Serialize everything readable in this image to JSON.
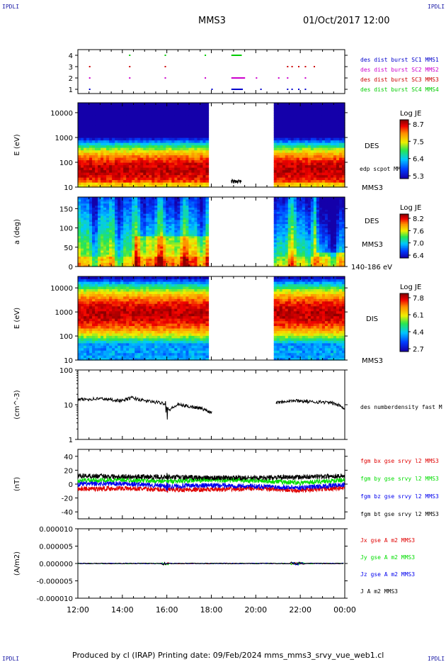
{
  "header": {
    "corner_label": "IPDLI",
    "spacecraft": "MMS3",
    "datetime": "01/Oct/2017 12:00"
  },
  "footer": {
    "text": "Produced by cl (IRAP)   Printing date: 09/Feb/2024   mms_mms3_srvy_vue_web1.cl"
  },
  "colors": {
    "mms1": "#0000cc",
    "mms2": "#cc00cc",
    "mms3": "#cc0000",
    "mms4": "#00cc00",
    "bx": "#e00000",
    "by": "#00dd00",
    "bz": "#0000ee",
    "bt": "#000000"
  },
  "time_axis": {
    "ticks": [
      "12:00",
      "14:00",
      "16:00",
      "18:00",
      "20:00",
      "22:00",
      "00:00"
    ]
  },
  "chart_data": [
    {
      "type": "scatter",
      "panel": "burst",
      "ylim": [
        1,
        4
      ],
      "y_ticks": [
        "1",
        "2",
        "3",
        "4"
      ],
      "legend": [
        "des dist burst SC1 MMS1",
        "des dist burst SC2 MMS2",
        "des dist burst SC3 MMS3",
        "des dist burst SC4 MMS4"
      ],
      "series": [
        {
          "name": "des dist burst SC1 MMS1",
          "level": 1,
          "color": "mms1",
          "x": [
            12.5,
            18.0,
            18.9,
            19.1,
            20.2,
            21.4,
            21.6,
            21.9,
            22.2
          ]
        },
        {
          "name": "des dist burst SC2 MMS2",
          "level": 2,
          "color": "mms2",
          "x": [
            12.5,
            14.3,
            15.9,
            17.7,
            18.9,
            19.1,
            19.2,
            20.0,
            21.0,
            21.4,
            22.2
          ]
        },
        {
          "name": "des dist burst SC3 MMS3",
          "level": 3,
          "color": "mms3",
          "x": [
            12.5,
            14.3,
            15.9,
            21.4,
            21.6,
            21.9,
            22.2,
            22.6
          ]
        },
        {
          "name": "des dist burst SC4 MMS4",
          "level": 4,
          "color": "mms4",
          "x": [
            14.3,
            15.9,
            17.7,
            18.9,
            19.05
          ]
        }
      ]
    },
    {
      "type": "heatmap",
      "panel": "des_energy",
      "ylabel": "E (eV)",
      "yscale": "log",
      "ylim": [
        10,
        25000
      ],
      "y_ticks": [
        "10",
        "100",
        "1000",
        "10000"
      ],
      "label_instrument": "DES",
      "label_overlay": "edp scpot MMS3",
      "label_spacecraft": "MMS3",
      "colorbar": {
        "label": "Log JE",
        "ticks": [
          "8.7",
          "7.5",
          "6.4",
          "5.3"
        ]
      },
      "gap": [
        18.0,
        20.7
      ],
      "peak_energy_eV": 50
    },
    {
      "type": "heatmap",
      "panel": "des_pitch",
      "ylabel": "a (deg)",
      "ylim": [
        0,
        180
      ],
      "y_ticks": [
        "0",
        "50",
        "100",
        "150"
      ],
      "label_instrument": "DES",
      "label_spacecraft": "MMS3",
      "label_energy": "140-186 eV",
      "colorbar": {
        "label": "Log JE",
        "ticks": [
          "8.2",
          "7.6",
          "7.0",
          "6.4"
        ]
      },
      "gap": [
        18.0,
        20.7
      ]
    },
    {
      "type": "heatmap",
      "panel": "dis_energy",
      "ylabel": "E (eV)",
      "yscale": "log",
      "ylim": [
        10,
        30000
      ],
      "y_ticks": [
        "10",
        "100",
        "1000",
        "10000"
      ],
      "label_instrument": "DIS",
      "label_spacecraft": "MMS3",
      "colorbar": {
        "label": "Log JE",
        "ticks": [
          "7.8",
          "6.1",
          "4.4",
          "2.7"
        ]
      },
      "gap": [
        18.0,
        20.7
      ],
      "peak_energy_eV": 900
    },
    {
      "type": "line",
      "panel": "density",
      "ylabel": "(cm^-3)",
      "yscale": "log",
      "ylim": [
        1,
        100
      ],
      "y_ticks": [
        "1",
        "10",
        "100"
      ],
      "legend": [
        "des numberdensity fast M"
      ],
      "series": [
        {
          "name": "des numberdensity fast M",
          "color": "bt",
          "x": [
            12.0,
            13.0,
            14.0,
            14.4,
            15.0,
            15.9,
            16.1,
            16.5,
            17.0,
            17.5,
            18.0,
            20.9,
            21.5,
            22.0,
            22.5,
            23.0,
            23.5,
            24.0
          ],
          "y": [
            14,
            15,
            13,
            16,
            13,
            11,
            7,
            10,
            9,
            8,
            6,
            12,
            13,
            13,
            12,
            12,
            11,
            8
          ]
        }
      ]
    },
    {
      "type": "line",
      "panel": "fgm",
      "ylabel": "(nT)",
      "ylim": [
        -50,
        50
      ],
      "y_ticks": [
        "-40",
        "-20",
        "0",
        "20",
        "40"
      ],
      "legend": [
        "fgm bx gse srvy l2 MMS3",
        "fgm by gse srvy l2 MMS3",
        "fgm bz gse srvy l2 MMS3",
        "fgm bt gse srvy l2 MMS3"
      ],
      "series": [
        {
          "name": "fgm bx gse srvy l2 MMS3",
          "color": "bx",
          "x": [
            12,
            14,
            16,
            18,
            20,
            22,
            24
          ],
          "y": [
            -7,
            -6,
            -8,
            -8,
            -6,
            -9,
            -5
          ]
        },
        {
          "name": "fgm by gse srvy l2 MMS3",
          "color": "by",
          "x": [
            12,
            14,
            16,
            18,
            20,
            22,
            24
          ],
          "y": [
            5,
            6,
            4,
            6,
            5,
            2,
            6
          ]
        },
        {
          "name": "fgm bz gse srvy l2 MMS3",
          "color": "bz",
          "x": [
            12,
            14,
            16,
            18,
            20,
            22,
            24
          ],
          "y": [
            0,
            1,
            -3,
            -2,
            -3,
            -5,
            -1
          ]
        },
        {
          "name": "fgm bt gse srvy l2 MMS3",
          "color": "bt",
          "x": [
            12,
            14,
            16,
            18,
            20,
            22,
            24
          ],
          "y": [
            12,
            11,
            10,
            9,
            9,
            10,
            12
          ]
        }
      ]
    },
    {
      "type": "line",
      "panel": "current",
      "ylabel": "(A/m2)",
      "ylim": [
        -1e-05,
        1e-05
      ],
      "y_ticks": [
        "-0.000010",
        "-0.000005",
        "0.000000",
        "0.000005",
        "0.000010"
      ],
      "legend": [
        "Jx gse A m2 MMS3",
        "Jy gse A m2 MMS3",
        "Jz gse A m2 MMS3",
        "J A m2 MMS3"
      ],
      "series": [
        {
          "name": "Jx gse A m2 MMS3",
          "color": "bx",
          "x": [
            12,
            24
          ],
          "y": [
            0,
            0
          ]
        },
        {
          "name": "Jy gse A m2 MMS3",
          "color": "by",
          "x": [
            12,
            24
          ],
          "y": [
            0,
            0
          ]
        },
        {
          "name": "Jz gse A m2 MMS3",
          "color": "bz",
          "x": [
            12,
            24
          ],
          "y": [
            0,
            0
          ]
        },
        {
          "name": "J A m2 MMS3",
          "color": "bt",
          "x": [
            12,
            24
          ],
          "y": [
            0,
            0
          ]
        }
      ]
    }
  ]
}
